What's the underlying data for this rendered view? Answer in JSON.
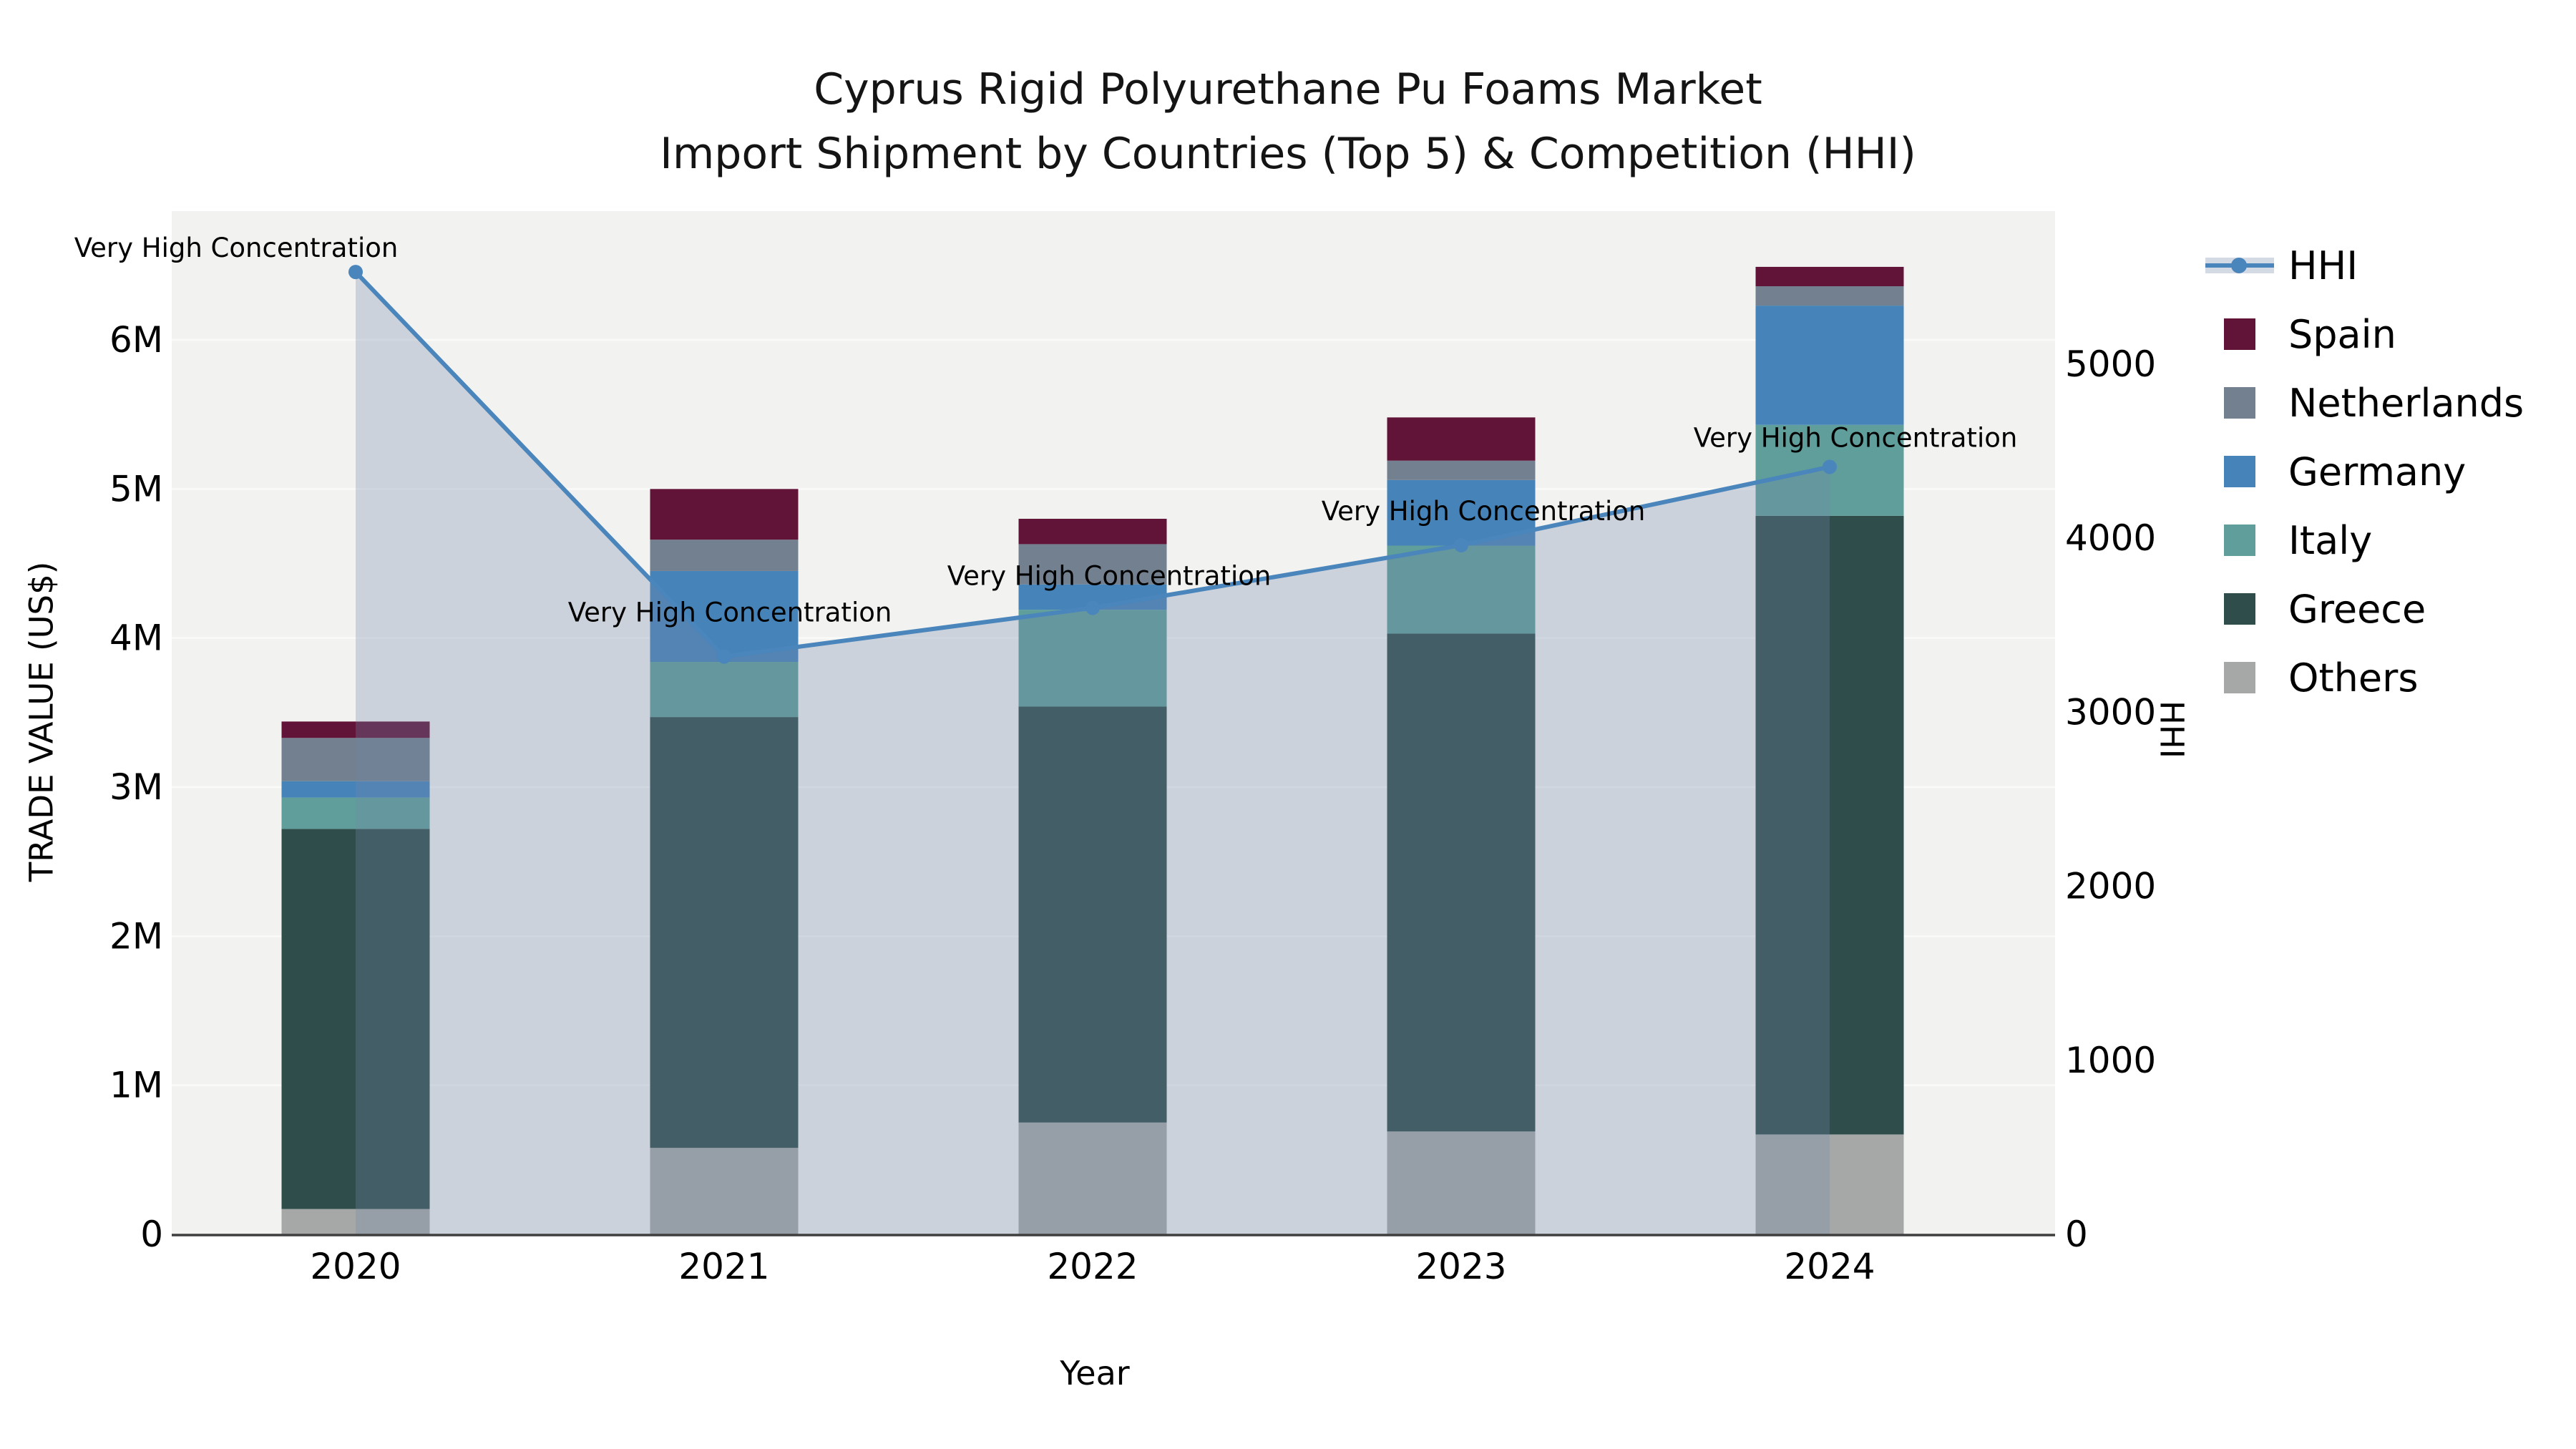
{
  "title": {
    "line1": "Cyprus Rigid Polyurethane Pu Foams Market",
    "line2": "Import Shipment by Countries (Top 5) & Competition (HHI)"
  },
  "colors": {
    "spain": "#611438",
    "netherlands": "#72808F",
    "germany": "#4583B8",
    "italy": "#5F9E9B",
    "greece": "#2F4D4B",
    "others": "#A5A8A7",
    "hhi_line": "#4A85BB",
    "hhi_area": "rgba(115,135,170,0.30)",
    "plot_bg": "#F2F2F1",
    "grid": "#FAFAF9",
    "axis_line": "#3F3F3F",
    "text": "#000000"
  },
  "chart_data": {
    "type": "bar",
    "subtype": "stacked-bars-with-hhi-line-and-area",
    "title": "Cyprus Rigid Polyurethane Pu Foams Market Import Shipment by Countries (Top 5) & Competition (HHI)",
    "categories": [
      "2020",
      "2021",
      "2022",
      "2023",
      "2024"
    ],
    "bar_series": [
      {
        "name": "Spain",
        "color_key": "spain",
        "values_usd": [
          110000,
          340000,
          170000,
          290000,
          130000
        ]
      },
      {
        "name": "Netherlands",
        "color_key": "netherlands",
        "values_usd": [
          290000,
          210000,
          270000,
          130000,
          130000
        ]
      },
      {
        "name": "Germany",
        "color_key": "germany",
        "values_usd": [
          110000,
          610000,
          170000,
          440000,
          800000
        ]
      },
      {
        "name": "Italy",
        "color_key": "italy",
        "values_usd": [
          210000,
          370000,
          650000,
          590000,
          610000
        ]
      },
      {
        "name": "Greece",
        "color_key": "greece",
        "values_usd": [
          2550000,
          2890000,
          2790000,
          3340000,
          4150000
        ]
      },
      {
        "name": "Others",
        "color_key": "others",
        "values_usd": [
          170000,
          580000,
          750000,
          690000,
          670000
        ]
      }
    ],
    "stack_order_bottom_to_top": [
      "Others",
      "Greece",
      "Italy",
      "Germany",
      "Netherlands",
      "Spain"
    ],
    "bar_totals_usd": [
      3440000,
      5000000,
      4800000,
      5480000,
      6490000
    ],
    "line_series": {
      "name": "HHI",
      "values": [
        5530,
        3320,
        3600,
        3960,
        4410
      ]
    },
    "annotations": [
      "Very High Concentration",
      "Very High Concentration",
      "Very High Concentration",
      "Very High Concentration",
      "Very High Concentration"
    ],
    "axes": {
      "x": {
        "label": "Year",
        "ticks": [
          "2020",
          "2021",
          "2022",
          "2023",
          "2024"
        ]
      },
      "left": {
        "label": "TRADE VALUE (US$)",
        "ticks": [
          "0",
          "1M",
          "2M",
          "3M",
          "4M",
          "5M",
          "6M"
        ],
        "tick_values_usd": [
          0,
          1000000,
          2000000,
          3000000,
          4000000,
          5000000,
          6000000
        ],
        "range_usd": [
          0,
          6870000
        ]
      },
      "right": {
        "label": "HHI",
        "ticks": [
          "0",
          "1000",
          "2000",
          "3000",
          "4000",
          "5000"
        ],
        "tick_values": [
          0,
          1000,
          2000,
          3000,
          4000,
          5000
        ],
        "range": [
          0,
          5880
        ]
      }
    },
    "grid": true,
    "legend_position": "right",
    "legend": [
      {
        "label": "HHI",
        "type": "line-marker",
        "color_key": "hhi_line"
      },
      {
        "label": "Spain",
        "type": "swatch",
        "color_key": "spain"
      },
      {
        "label": "Netherlands",
        "type": "swatch",
        "color_key": "netherlands"
      },
      {
        "label": "Germany",
        "type": "swatch",
        "color_key": "germany"
      },
      {
        "label": "Italy",
        "type": "swatch",
        "color_key": "italy"
      },
      {
        "label": "Greece",
        "type": "swatch",
        "color_key": "greece"
      },
      {
        "label": "Others",
        "type": "swatch",
        "color_key": "others"
      }
    ]
  }
}
